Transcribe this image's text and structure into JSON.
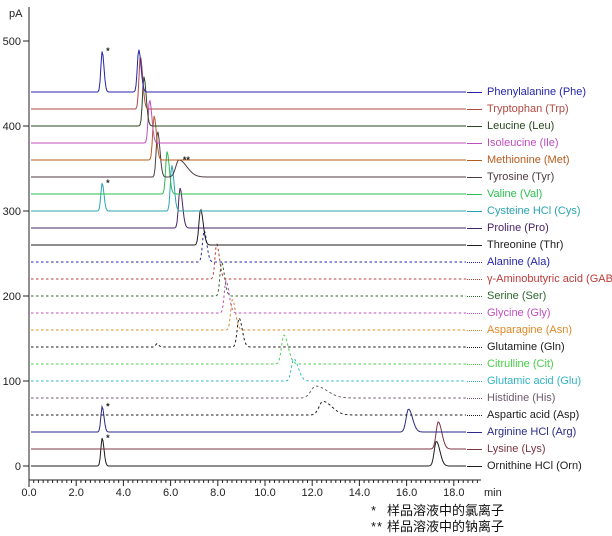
{
  "chart_data": {
    "type": "line",
    "title": "",
    "xlabel": "min",
    "ylabel": "pA",
    "xlim": [
      0,
      19.1
    ],
    "ylim": [
      0,
      550
    ],
    "grid": false,
    "legend_position": "right",
    "x_ticks": [
      0,
      2,
      4,
      6,
      8,
      10,
      12,
      14,
      16,
      18
    ],
    "x_tick_labels": [
      "0.0",
      "2.0",
      "4.0",
      "6.0",
      "8.0",
      "10.0",
      "12.0",
      "14.0",
      "16.0",
      "18.0"
    ],
    "x_minor_tick_interval": 0.2,
    "y_ticks": [
      0,
      100,
      200,
      300,
      400,
      500
    ],
    "y_tick_labels": [
      "0",
      "100",
      "200",
      "300",
      "400",
      "500"
    ],
    "baseline_offset_pA": 20,
    "traces": [
      {
        "name": "Phenylalanine (Phe)",
        "abbr": "Phe",
        "color": "#2424A8",
        "line_style": "solid",
        "baseline_pA": 440,
        "peaks": [
          {
            "t_min": 3.1,
            "height_pA": 48,
            "sigma_min": 0.055,
            "tail": 1.4,
            "marker": "*"
          },
          {
            "t_min": 4.65,
            "height_pA": 50,
            "sigma_min": 0.06,
            "tail": 1.6
          }
        ]
      },
      {
        "name": "Tryptophan (Trp)",
        "abbr": "Trp",
        "color": "#B24A42",
        "line_style": "solid",
        "baseline_pA": 420,
        "peaks": [
          {
            "t_min": 4.72,
            "height_pA": 62,
            "sigma_min": 0.06,
            "tail": 1.6
          }
        ]
      },
      {
        "name": "Leucine (Leu)",
        "abbr": "Leu",
        "color": "#27471F",
        "line_style": "solid",
        "baseline_pA": 400,
        "peaks": [
          {
            "t_min": 4.87,
            "height_pA": 58,
            "sigma_min": 0.06,
            "tail": 1.6
          }
        ]
      },
      {
        "name": "Isoleucine (Ile)",
        "abbr": "Ile",
        "color": "#C04EC0",
        "line_style": "solid",
        "baseline_pA": 380,
        "peaks": [
          {
            "t_min": 5.11,
            "height_pA": 51,
            "sigma_min": 0.06,
            "tail": 1.6
          }
        ]
      },
      {
        "name": "Methionine (Met)",
        "abbr": "Met",
        "color": "#B65B1E",
        "line_style": "solid",
        "baseline_pA": 360,
        "peaks": [
          {
            "t_min": 5.3,
            "height_pA": 52,
            "sigma_min": 0.06,
            "tail": 1.6
          }
        ]
      },
      {
        "name": "Tyrosine (Tyr)",
        "abbr": "Tyr",
        "color": "#4E3A44",
        "line_style": "solid",
        "baseline_pA": 340,
        "peaks": [
          {
            "t_min": 5.45,
            "height_pA": 54,
            "sigma_min": 0.06,
            "tail": 1.6
          },
          {
            "t_min": 6.35,
            "height_pA": 20,
            "sigma_min": 0.13,
            "tail": 2.6,
            "marker": "**"
          }
        ]
      },
      {
        "name": "Valine (Val)",
        "abbr": "Val",
        "color": "#2CBE50",
        "line_style": "solid",
        "baseline_pA": 320,
        "peaks": [
          {
            "t_min": 5.85,
            "height_pA": 50,
            "sigma_min": 0.06,
            "tail": 1.6
          }
        ]
      },
      {
        "name": "Cysteine HCl (Cys)",
        "abbr": "Cys",
        "color": "#2AA4B2",
        "line_style": "solid",
        "baseline_pA": 300,
        "peaks": [
          {
            "t_min": 3.1,
            "height_pA": 33,
            "sigma_min": 0.055,
            "tail": 1.4,
            "marker": "*"
          },
          {
            "t_min": 6.05,
            "height_pA": 54,
            "sigma_min": 0.06,
            "tail": 1.6
          }
        ]
      },
      {
        "name": "Proline (Pro)",
        "abbr": "Pro",
        "color": "#482465",
        "line_style": "solid",
        "baseline_pA": 280,
        "peaks": [
          {
            "t_min": 6.4,
            "height_pA": 47,
            "sigma_min": 0.065,
            "tail": 1.6
          }
        ]
      },
      {
        "name": "Threonine (Thr)",
        "abbr": "Thr",
        "color": "#1D1D1D",
        "line_style": "solid",
        "baseline_pA": 260,
        "peaks": [
          {
            "t_min": 7.27,
            "height_pA": 42,
            "sigma_min": 0.07,
            "tail": 1.6
          }
        ]
      },
      {
        "name": "Alanine (Ala)",
        "abbr": "Ala",
        "color": "#2424A8",
        "line_style": "dashed",
        "baseline_pA": 240,
        "peaks": [
          {
            "t_min": 7.42,
            "height_pA": 37,
            "sigma_min": 0.07,
            "tail": 1.6
          }
        ]
      },
      {
        "name": "γ-Aminobutyric acid (GABA)",
        "abbr": "GABA",
        "color": "#BE3C3C",
        "line_style": "dashed",
        "baseline_pA": 220,
        "peaks": [
          {
            "t_min": 7.95,
            "height_pA": 41,
            "sigma_min": 0.07,
            "tail": 1.7
          }
        ]
      },
      {
        "name": "Serine (Ser)",
        "abbr": "Ser",
        "color": "#2D682D",
        "line_style": "dashed",
        "baseline_pA": 200,
        "peaks": [
          {
            "t_min": 8.16,
            "height_pA": 40,
            "sigma_min": 0.07,
            "tail": 1.7
          }
        ]
      },
      {
        "name": "Glycine (Gly)",
        "abbr": "Gly",
        "color": "#C04EC0",
        "line_style": "dashed",
        "baseline_pA": 180,
        "peaks": [
          {
            "t_min": 8.35,
            "height_pA": 38,
            "sigma_min": 0.075,
            "tail": 1.7
          }
        ]
      },
      {
        "name": "Asparagine (Asn)",
        "abbr": "Asn",
        "color": "#DD8926",
        "line_style": "dashed",
        "baseline_pA": 160,
        "peaks": [
          {
            "t_min": 8.62,
            "height_pA": 36,
            "sigma_min": 0.075,
            "tail": 1.7
          }
        ]
      },
      {
        "name": "Glutamine (Gln)",
        "abbr": "Gln",
        "color": "#1D1D1D",
        "line_style": "dashed",
        "baseline_pA": 140,
        "peaks": [
          {
            "t_min": 5.42,
            "height_pA": 4,
            "sigma_min": 0.05,
            "tail": 1.5
          },
          {
            "t_min": 8.9,
            "height_pA": 34,
            "sigma_min": 0.08,
            "tail": 1.7
          }
        ]
      },
      {
        "name": "Citrulline (Cit)",
        "abbr": "Cit",
        "color": "#49CF49",
        "line_style": "dashed",
        "baseline_pA": 120,
        "peaks": [
          {
            "t_min": 10.8,
            "height_pA": 34,
            "sigma_min": 0.1,
            "tail": 1.8
          }
        ]
      },
      {
        "name": "Glutamic acid (Glu)",
        "abbr": "Glu",
        "color": "#30B5C7",
        "line_style": "dashed",
        "baseline_pA": 100,
        "peaks": [
          {
            "t_min": 11.22,
            "height_pA": 26,
            "sigma_min": 0.1,
            "tail": 1.9
          }
        ]
      },
      {
        "name": "Histidine (His)",
        "abbr": "His",
        "color": "#6C5C6C",
        "line_style": "dashed",
        "baseline_pA": 80,
        "peaks": [
          {
            "t_min": 12.15,
            "height_pA": 14,
            "sigma_min": 0.2,
            "tail": 2.4
          }
        ]
      },
      {
        "name": "Aspartic acid (Asp)",
        "abbr": "Asp",
        "color": "#1D1D1D",
        "line_style": "dashed",
        "baseline_pA": 60,
        "peaks": [
          {
            "t_min": 12.45,
            "height_pA": 16,
            "sigma_min": 0.16,
            "tail": 2.4
          }
        ]
      },
      {
        "name": "Arginine HCl (Arg)",
        "abbr": "Arg",
        "color": "#2A2A88",
        "line_style": "solid",
        "baseline_pA": 40,
        "peaks": [
          {
            "t_min": 3.1,
            "height_pA": 30,
            "sigma_min": 0.055,
            "tail": 1.4,
            "marker": "*"
          },
          {
            "t_min": 16.08,
            "height_pA": 27,
            "sigma_min": 0.1,
            "tail": 1.7
          }
        ]
      },
      {
        "name": "Lysine (Lys)",
        "abbr": "Lys",
        "color": "#7C3444",
        "line_style": "solid",
        "baseline_pA": 20,
        "peaks": [
          {
            "t_min": 17.34,
            "height_pA": 32,
            "sigma_min": 0.09,
            "tail": 1.7
          }
        ]
      },
      {
        "name": "Ornithine HCl (Orn)",
        "abbr": "Orn",
        "color": "#1D1D1D",
        "line_style": "solid",
        "baseline_pA": 0,
        "peaks": [
          {
            "t_min": 3.1,
            "height_pA": 33,
            "sigma_min": 0.055,
            "tail": 1.4,
            "marker": "*"
          },
          {
            "t_min": 17.26,
            "height_pA": 29,
            "sigma_min": 0.09,
            "tail": 1.7
          }
        ]
      }
    ]
  },
  "footnotes": [
    {
      "marker": "*",
      "text": "样品溶液中的氯离子"
    },
    {
      "marker": "**",
      "text": "样品溶液中的钠离子"
    }
  ]
}
